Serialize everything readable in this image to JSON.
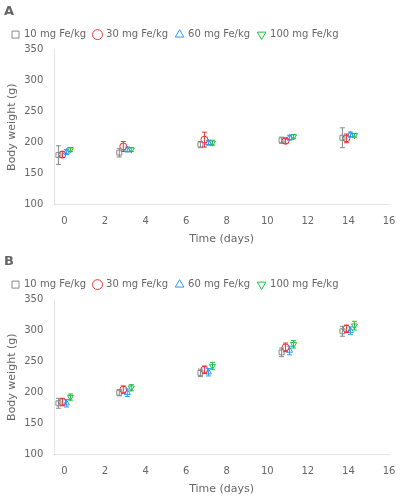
{
  "chart_data": [
    {
      "type": "scatter",
      "title": "A",
      "xlabel": "Time (days)",
      "ylabel": "Body weight (g)",
      "x": [
        0,
        3,
        7,
        11,
        14
      ],
      "xlim": [
        -0.5,
        16
      ],
      "xticks": [
        0,
        2,
        4,
        6,
        8,
        10,
        12,
        14,
        16
      ],
      "ylim": [
        100,
        350
      ],
      "yticks": [
        100,
        150,
        200,
        250,
        300,
        350
      ],
      "grid": false,
      "legend": "upper left",
      "series": [
        {
          "name": "10 mg Fe/kg",
          "color": "#888888",
          "marker": "square",
          "values": [
            180,
            184,
            197,
            204,
            208
          ],
          "yerr": [
            15,
            7,
            5,
            5,
            16
          ]
        },
        {
          "name": "30 mg Fe/kg",
          "color": "#ee3333",
          "marker": "circle",
          "values": [
            181,
            194,
            205,
            203,
            207
          ],
          "yerr": [
            5,
            8,
            12,
            4,
            7
          ]
        },
        {
          "name": "60 mg Fe/kg",
          "color": "#3399ff",
          "marker": "triangle-up",
          "values": [
            185,
            189,
            200,
            208,
            213
          ],
          "yerr": [
            4,
            4,
            4,
            4,
            4
          ]
        },
        {
          "name": "100 mg Fe/kg",
          "color": "#22bb44",
          "marker": "triangle-down",
          "values": [
            189,
            189,
            200,
            210,
            212
          ],
          "yerr": [
            3,
            3,
            4,
            3,
            3
          ]
        }
      ]
    },
    {
      "type": "scatter",
      "title": "B",
      "xlabel": "Time (days)",
      "ylabel": "Body weight (g)",
      "x": [
        0,
        3,
        7,
        11,
        14
      ],
      "xlim": [
        -0.5,
        16
      ],
      "xticks": [
        0,
        2,
        4,
        6,
        8,
        10,
        12,
        14,
        16
      ],
      "ylim": [
        100,
        350
      ],
      "yticks": [
        100,
        150,
        200,
        250,
        300,
        350
      ],
      "grid": false,
      "legend": "upper left",
      "series": [
        {
          "name": "10 mg Fe/kg",
          "color": "#888888",
          "marker": "square",
          "values": [
            183,
            200,
            232,
            265,
            299
          ],
          "yerr": [
            8,
            5,
            6,
            7,
            8
          ]
        },
        {
          "name": "30 mg Fe/kg",
          "color": "#ee3333",
          "marker": "circle",
          "values": [
            185,
            205,
            237,
            273,
            303
          ],
          "yerr": [
            6,
            6,
            6,
            7,
            6
          ]
        },
        {
          "name": "60 mg Fe/kg",
          "color": "#3399ff",
          "marker": "triangle-up",
          "values": [
            183,
            200,
            233,
            268,
            300
          ],
          "yerr": [
            6,
            6,
            6,
            7,
            6
          ]
        },
        {
          "name": "100 mg Fe/kg",
          "color": "#22bb44",
          "marker": "triangle-down",
          "values": [
            193,
            208,
            243,
            278,
            308
          ],
          "yerr": [
            5,
            5,
            6,
            6,
            7
          ]
        }
      ]
    }
  ]
}
